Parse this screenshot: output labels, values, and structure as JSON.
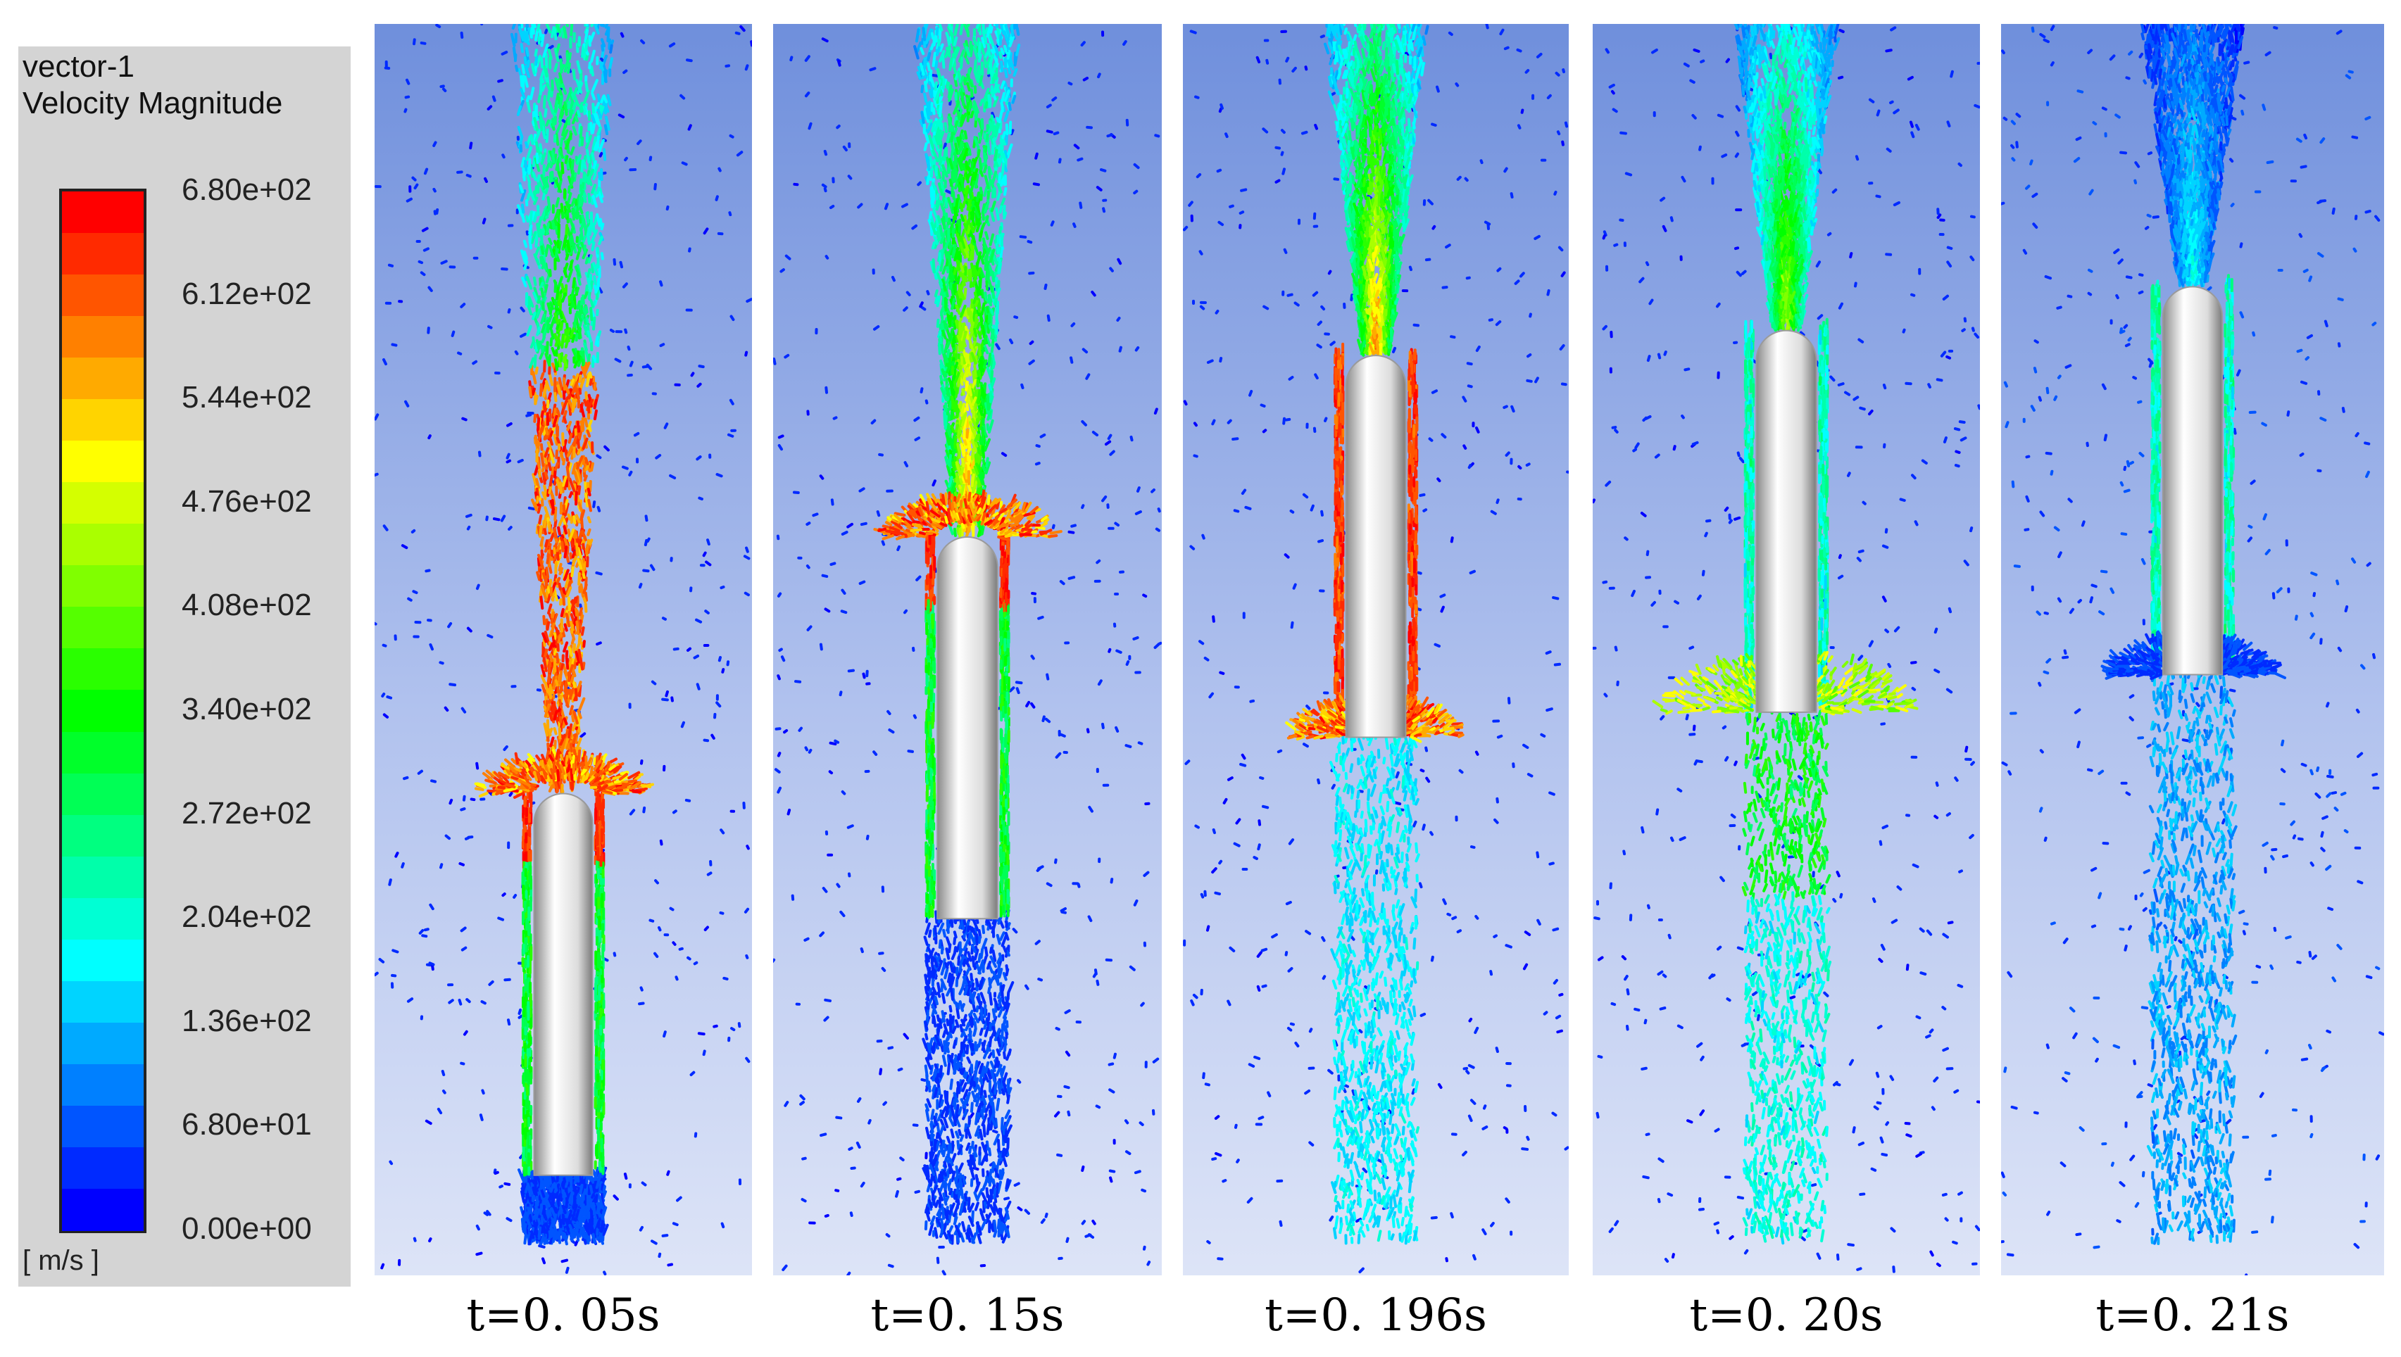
{
  "legend": {
    "name": "vector-1",
    "variable": "Velocity Magnitude",
    "unit": "[ m/s ]",
    "ticks": [
      "6.80e+02",
      "6.12e+02",
      "5.44e+02",
      "4.76e+02",
      "4.08e+02",
      "3.40e+02",
      "2.72e+02",
      "2.04e+02",
      "1.36e+02",
      "6.80e+01",
      "0.00e+00"
    ],
    "colors": [
      "#ff0000",
      "#ff2a00",
      "#ff5500",
      "#ff8000",
      "#ffaa00",
      "#ffd400",
      "#ffff00",
      "#d4ff00",
      "#aaff00",
      "#80ff00",
      "#55ff00",
      "#2aff00",
      "#00ff00",
      "#00ff2a",
      "#00ff55",
      "#00ff80",
      "#00ffaa",
      "#00ffd4",
      "#00ffff",
      "#00d4ff",
      "#00aaff",
      "#0080ff",
      "#0055ff",
      "#002aff",
      "#0000ff"
    ]
  },
  "panels": [
    {
      "time": "t=0. 05s",
      "velocity_peak": 680,
      "cylinder_top": 0.615,
      "cylinder_bottom": 0.92
    },
    {
      "time": "t=0. 15s",
      "velocity_peak": 680,
      "cylinder_top": 0.41,
      "cylinder_bottom": 0.715
    },
    {
      "time": "t=0. 196s",
      "velocity_peak": 680,
      "cylinder_top": 0.265,
      "cylinder_bottom": 0.57
    },
    {
      "time": "t=0. 20s",
      "velocity_peak": 520,
      "cylinder_top": 0.245,
      "cylinder_bottom": 0.55
    },
    {
      "time": "t=0. 21s",
      "velocity_peak": 200,
      "cylinder_top": 0.21,
      "cylinder_bottom": 0.52
    }
  ]
}
